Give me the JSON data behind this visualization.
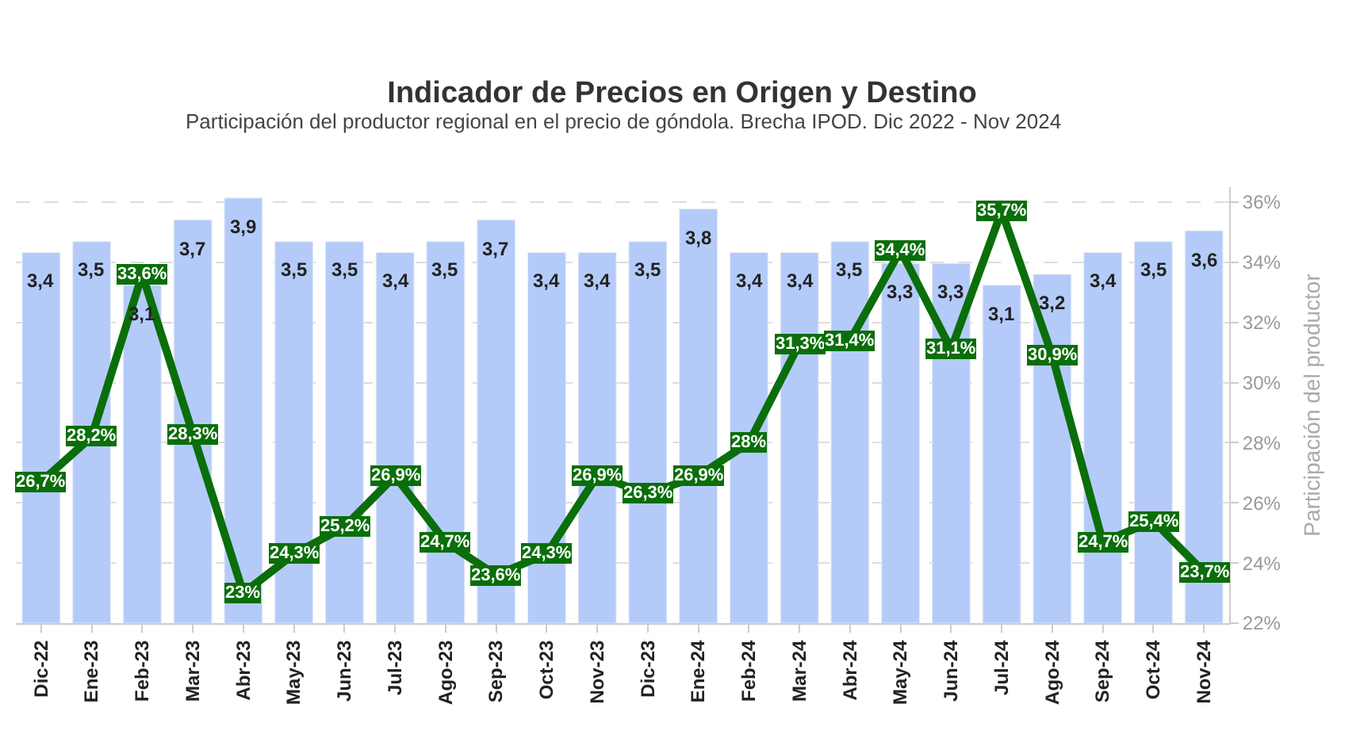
{
  "chart_data": {
    "type": "bar",
    "title": "Indicador de Precios en Origen y Destino",
    "subtitle": "Participación del productor regional en el precio de góndola. Brecha IPOD. Dic 2022 - Nov 2024",
    "y2label": "Participación del productor",
    "categories": [
      "Dic-22",
      "Ene-23",
      "Feb-23",
      "Mar-23",
      "Abr-23",
      "May-23",
      "Jun-23",
      "Jul-23",
      "Ago-23",
      "Sep-23",
      "Oct-23",
      "Nov-23",
      "Dic-23",
      "Ene-24",
      "Feb-24",
      "Mar-24",
      "Abr-24",
      "May-24",
      "Jun-24",
      "Jul-24",
      "Ago-24",
      "Sep-24",
      "Oct-24",
      "Nov-24"
    ],
    "series": [
      {
        "color": "#b4cbfa",
        "values": [
          3.4,
          3.5,
          3.1,
          3.7,
          3.9,
          3.5,
          3.5,
          3.4,
          3.5,
          3.7,
          3.4,
          3.4,
          3.5,
          3.8,
          3.4,
          3.4,
          3.5,
          3.3,
          3.3,
          3.1,
          3.2,
          3.4,
          3.5,
          3.6
        ],
        "value_labels": [
          "3,4",
          "3,5",
          "3,1",
          "3,7",
          "3,9",
          "3,5",
          "3,5",
          "3,4",
          "3,5",
          "3,7",
          "3,4",
          "3,4",
          "3,5",
          "3,8",
          "3,4",
          "3,4",
          "3,5",
          "3,3",
          "3,3",
          "3,1",
          "3,2",
          "3,4",
          "3,5",
          "3,6"
        ]
      },
      {
        "type": "line",
        "axis": "y2",
        "marker": "square",
        "color": "#0a6e0a",
        "values": [
          26.7,
          28.2,
          33.6,
          28.3,
          23,
          24.3,
          25.2,
          26.9,
          24.7,
          23.6,
          24.3,
          26.9,
          26.3,
          26.9,
          28,
          31.3,
          31.4,
          34.4,
          31.1,
          35.7,
          30.9,
          24.7,
          25.4,
          23.7
        ],
        "value_labels": [
          "26,7%",
          "28,2%",
          "33,6%",
          "28,3%",
          "23%",
          "24,3%",
          "25,2%",
          "26,9%",
          "24,7%",
          "23,6%",
          "24,3%",
          "26,9%",
          "26,3%",
          "26,9%",
          "28%",
          "31,3%",
          "31,4%",
          "34,4%",
          "31,1%",
          "35,7%",
          "30,9%",
          "24,7%",
          "25,4%",
          "23,7%"
        ]
      }
    ],
    "ylim": [
      0,
      4
    ],
    "y2lim": [
      22,
      36.5
    ],
    "y2ticks": [
      {
        "value": 22,
        "label": "22%"
      },
      {
        "value": 24,
        "label": "24%"
      },
      {
        "value": 26,
        "label": "26%"
      },
      {
        "value": 28,
        "label": "28%"
      },
      {
        "value": 30,
        "label": "30%"
      },
      {
        "value": 32,
        "label": "32%"
      },
      {
        "value": 34,
        "label": "34%"
      },
      {
        "value": 36,
        "label": "36%"
      }
    ],
    "grid": "y",
    "legend": false,
    "line_style": "solid"
  }
}
